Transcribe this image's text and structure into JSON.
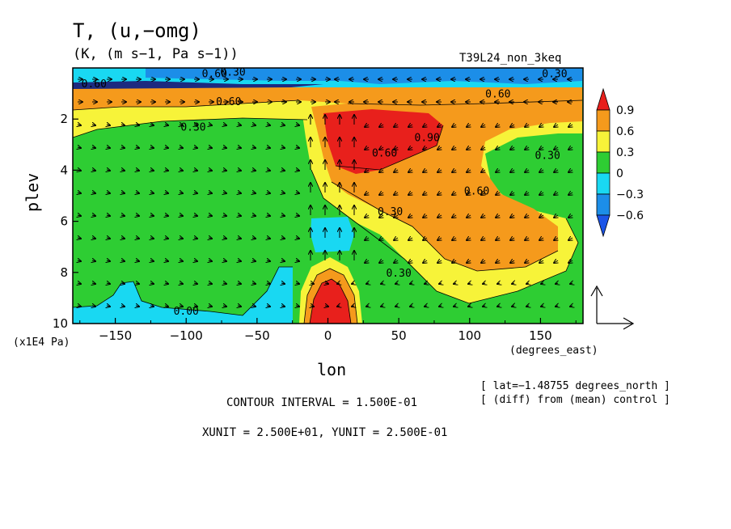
{
  "header": {
    "title": "T, (u,−omg)",
    "units": "(K, (m s−1, Pa s−1))",
    "experiment": "T39L24_non_3keq"
  },
  "footer": {
    "contour_interval": "CONTOUR INTERVAL = 1.500E-01",
    "vector_units": "XUNIT = 2.500E+01, YUNIT = 2.500E-01",
    "lat_note": "[ lat=−1.48755 degrees_north ]",
    "diff_note": "[ (diff) from (mean) control ]"
  },
  "chart_data": {
    "type": "heatmap",
    "xlabel": "lon",
    "xunit": "(degrees_east)",
    "ylabel": "plev",
    "yunit": "(x1E4 Pa)",
    "xlim": [
      -180,
      180
    ],
    "ylim": [
      10,
      0
    ],
    "x_ticks": [
      -150,
      -100,
      -50,
      0,
      50,
      100,
      150
    ],
    "y_ticks": [
      2,
      4,
      6,
      8,
      10
    ],
    "colorbar": {
      "levels": [
        "0.9",
        "0.6",
        "0.3",
        "0",
        "−0.3",
        "−0.6"
      ],
      "colors": [
        "#e8201c",
        "#f59a1c",
        "#f7f339",
        "#2ecd33",
        "#19d8f2",
        "#1c8ee8",
        "#1c55e8"
      ]
    },
    "contour_labels": [
      {
        "text": "0.30",
        "x": -95,
        "y": 2.3
      },
      {
        "text": "0.60",
        "x": -70,
        "y": 1.3
      },
      {
        "text": "0.60",
        "x": 40,
        "y": 3.3
      },
      {
        "text": "0.90",
        "x": 70,
        "y": 2.7
      },
      {
        "text": "0.60",
        "x": 105,
        "y": 4.8
      },
      {
        "text": "0.30",
        "x": 155,
        "y": 3.4
      },
      {
        "text": "0.30",
        "x": 44,
        "y": 5.6
      },
      {
        "text": "0.30",
        "x": 50,
        "y": 8.0
      },
      {
        "text": "0.00",
        "x": -100,
        "y": 9.5
      },
      {
        "text": "0.30",
        "x": -67,
        "y": -0.35
      },
      {
        "text": "0.60",
        "x": -80,
        "y": 0.2
      },
      {
        "text": "0.60",
        "x": -165,
        "y": 0.6
      },
      {
        "text": "0.30",
        "x": 160,
        "y": 0.2
      },
      {
        "text": "0.60",
        "x": 120,
        "y": 1.0
      }
    ]
  }
}
